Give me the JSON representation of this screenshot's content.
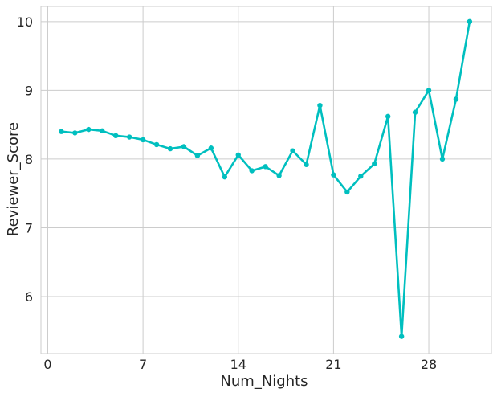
{
  "chart_data": {
    "type": "line",
    "xlabel": "Num_Nights",
    "ylabel": "Reviewer_Score",
    "xlim": [
      -0.5,
      32.6
    ],
    "ylim": [
      5.17,
      10.22
    ],
    "xticks": [
      0,
      7,
      14,
      21,
      28
    ],
    "yticks": [
      6,
      7,
      8,
      9,
      10
    ],
    "grid": true,
    "series": [
      {
        "color": "#00bfbf",
        "x": [
          1,
          2,
          3,
          4,
          5,
          6,
          7,
          8,
          9,
          10,
          11,
          12,
          13,
          14,
          15,
          16,
          17,
          18,
          19,
          20,
          21,
          22,
          23,
          24,
          25,
          26,
          27,
          28,
          29,
          30,
          31
        ],
        "y": [
          8.4,
          8.38,
          8.43,
          8.41,
          8.34,
          8.32,
          8.28,
          8.21,
          8.15,
          8.18,
          8.05,
          8.16,
          7.74,
          8.06,
          7.83,
          7.89,
          7.76,
          8.12,
          7.92,
          8.78,
          7.77,
          7.52,
          7.75,
          7.93,
          8.62,
          5.42,
          8.68,
          9.0,
          8.0,
          8.87,
          10.0
        ]
      }
    ]
  }
}
